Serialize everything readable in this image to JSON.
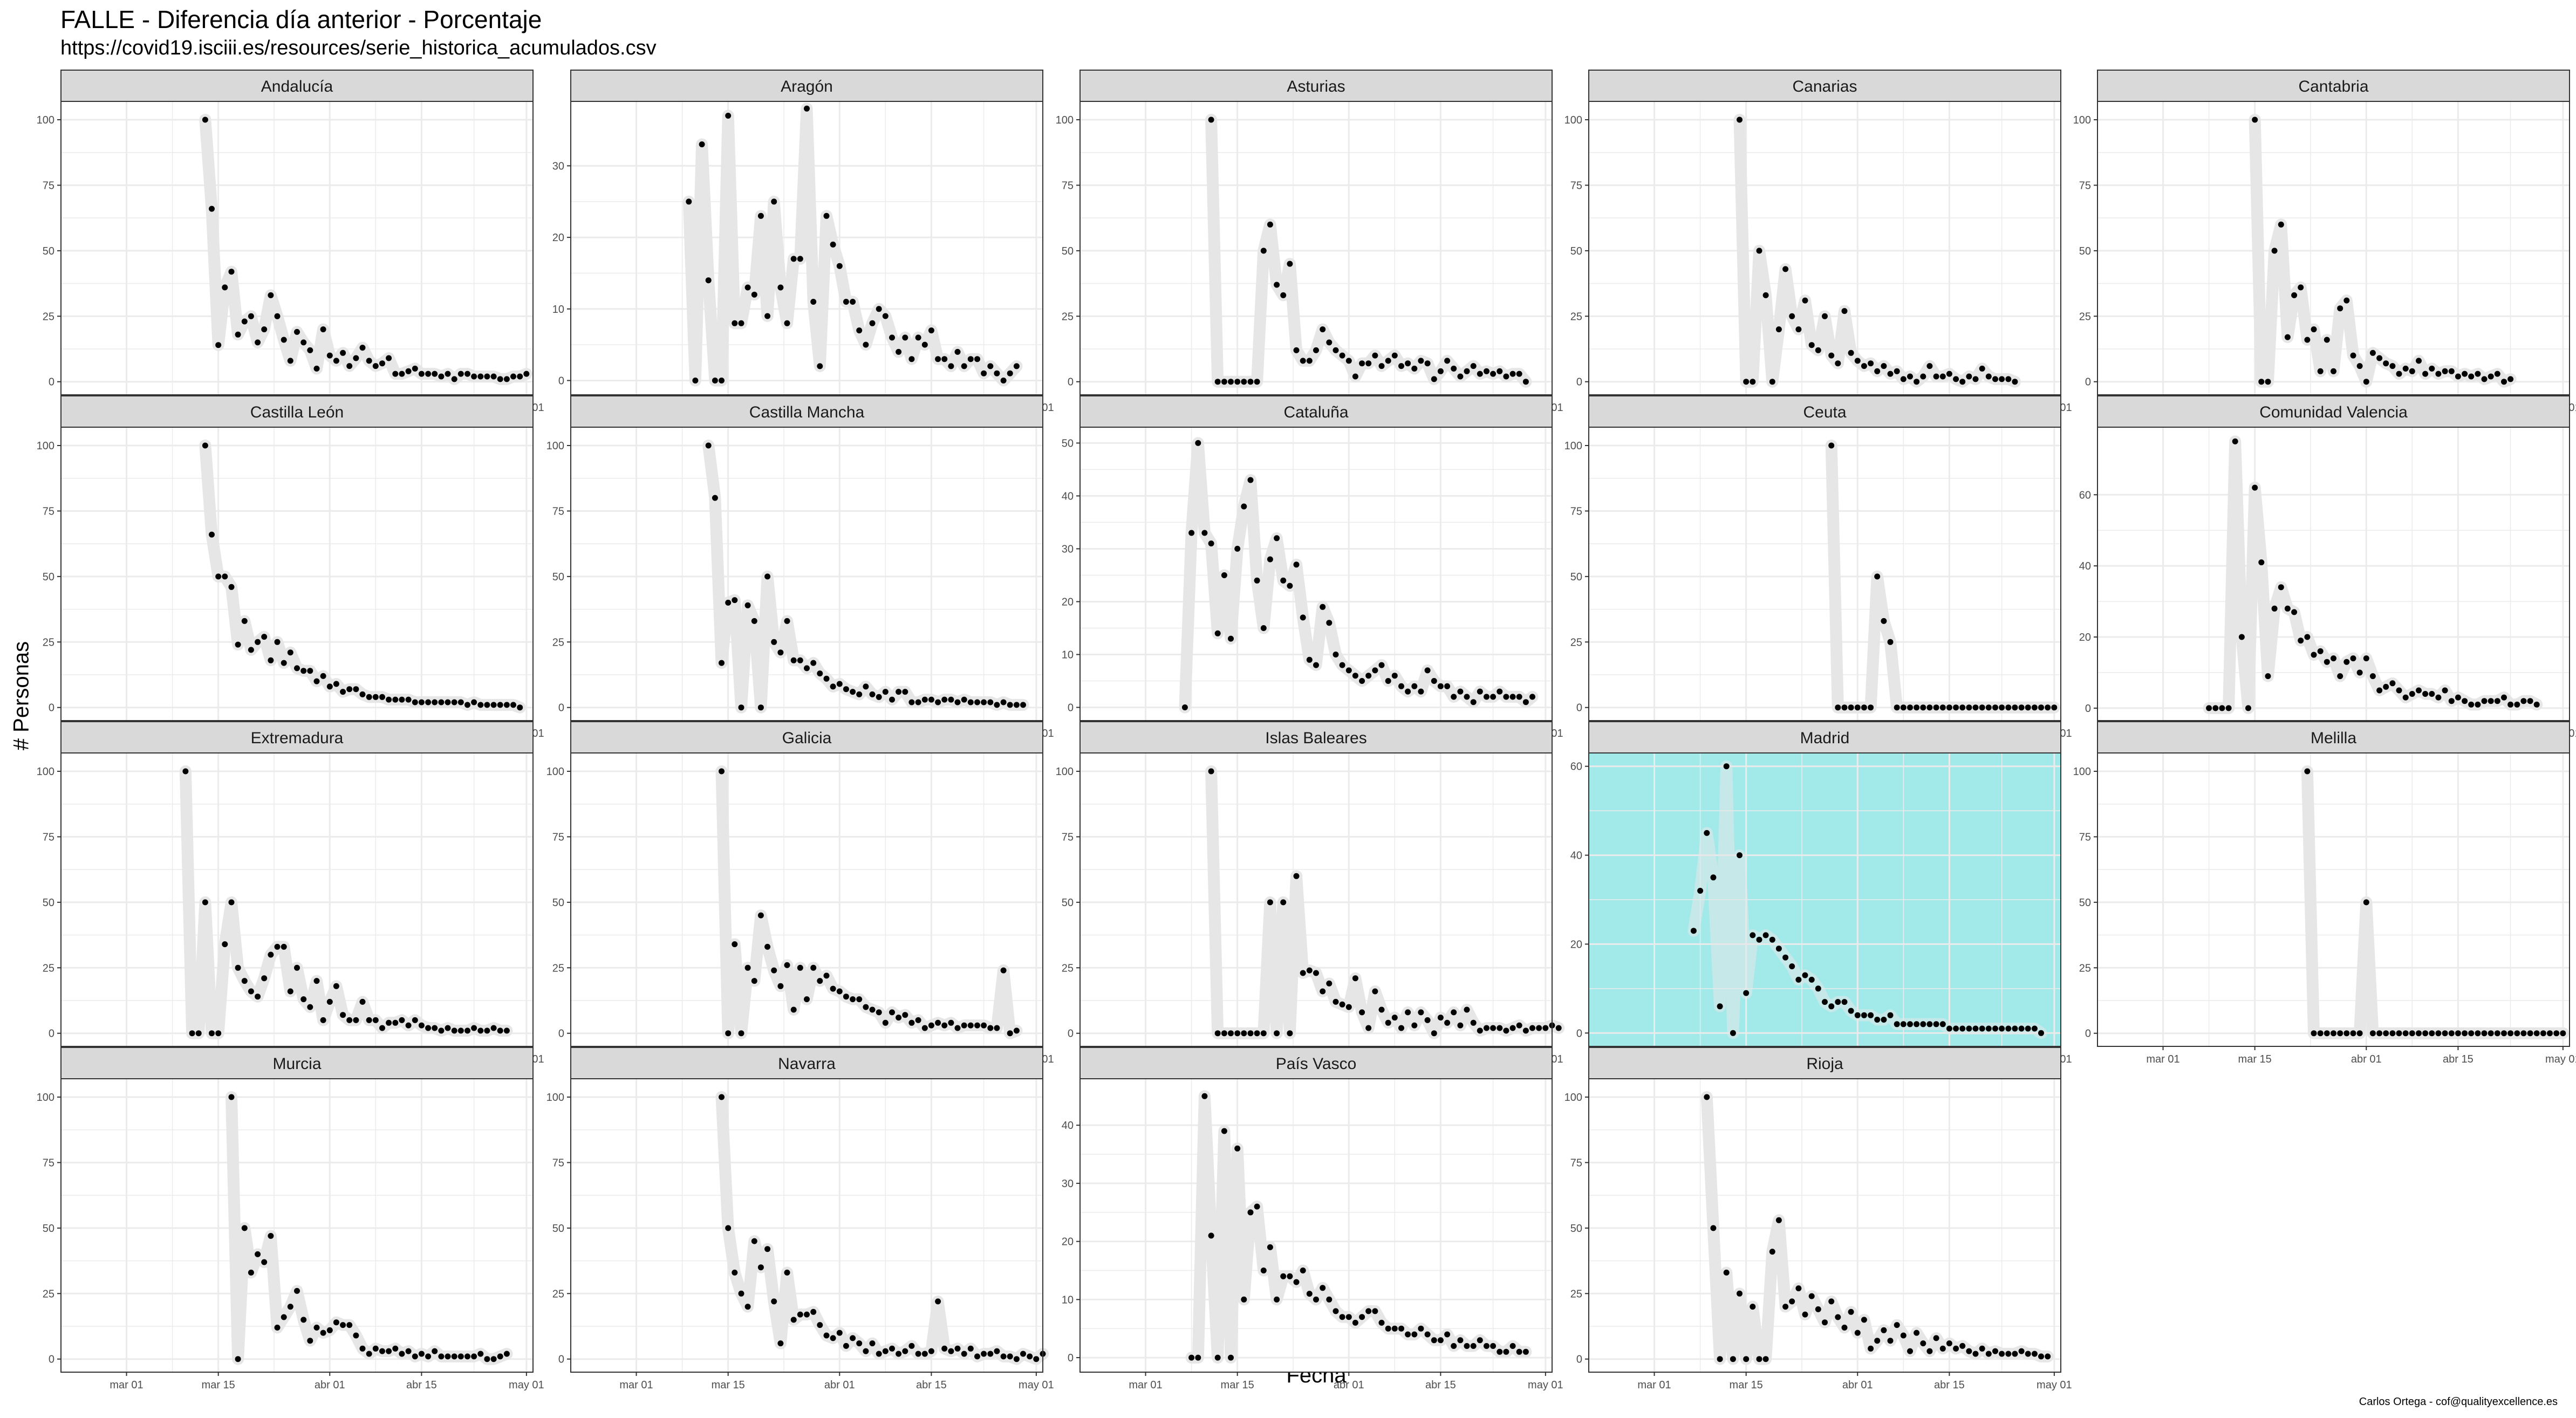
{
  "title": "FALLE - Diferencia día anterior - Porcentaje",
  "subtitle": "https://covid19.isciii.es/resources/serie_historica_acumulados.csv",
  "xlabel": "Fecha",
  "ylabel": "# Personas",
  "caption": "Carlos Ortega - cof@qualityexcellence.es",
  "colors": {
    "highlight_panel": "#a2eaea",
    "strip": "#d9d9d9",
    "line": "#e6e6e6",
    "point": "#000000",
    "grid": "#ebebeb"
  },
  "chart_data": {
    "type": "line",
    "x_ticks": [
      "mar 01",
      "mar 15",
      "abr 01",
      "abr 15",
      "may 01"
    ],
    "xlim": [
      "2020-02-20",
      "2020-05-02"
    ],
    "highlight": "Madrid",
    "panels": [
      {
        "name": "Andalucía",
        "ylim": [
          -5,
          107
        ],
        "y_ticks": [
          0,
          25,
          50,
          75,
          100
        ],
        "start": "2020-03-13",
        "values": [
          100,
          66,
          14,
          36,
          42,
          18,
          23,
          25,
          15,
          20,
          33,
          25,
          16,
          8,
          19,
          15,
          12,
          5,
          20,
          10,
          8,
          11,
          6,
          9,
          13,
          8,
          6,
          7,
          9,
          3,
          3,
          4,
          5,
          3,
          3,
          3,
          2,
          3,
          1,
          3,
          3,
          2,
          2,
          2,
          2,
          1,
          1,
          2,
          2,
          3
        ]
      },
      {
        "name": "Aragón",
        "ylim": [
          -2,
          39
        ],
        "y_ticks": [
          0,
          10,
          20,
          30
        ],
        "start": "2020-03-09",
        "values": [
          25,
          0,
          33,
          14,
          0,
          0,
          37,
          8,
          8,
          13,
          12,
          23,
          9,
          25,
          13,
          8,
          17,
          17,
          38,
          11,
          2,
          23,
          19,
          16,
          11,
          11,
          7,
          5,
          8,
          10,
          9,
          6,
          4,
          6,
          3,
          6,
          5,
          7,
          3,
          3,
          2,
          4,
          2,
          3,
          3,
          1,
          2,
          1,
          0,
          1,
          2
        ]
      },
      {
        "name": "Asturias",
        "ylim": [
          -5,
          107
        ],
        "y_ticks": [
          0,
          25,
          50,
          75,
          100
        ],
        "start": "2020-03-11",
        "values": [
          100,
          0,
          0,
          0,
          0,
          0,
          0,
          0,
          50,
          60,
          37,
          33,
          45,
          12,
          8,
          8,
          12,
          20,
          15,
          12,
          10,
          8,
          2,
          7,
          7,
          10,
          6,
          8,
          10,
          6,
          7,
          5,
          8,
          7,
          1,
          4,
          8,
          5,
          2,
          4,
          6,
          3,
          4,
          3,
          4,
          2,
          3,
          3,
          0
        ]
      },
      {
        "name": "Canarias",
        "ylim": [
          -5,
          107
        ],
        "y_ticks": [
          0,
          25,
          50,
          75,
          100
        ],
        "start": "2020-03-14",
        "values": [
          100,
          0,
          0,
          50,
          33,
          0,
          20,
          43,
          25,
          20,
          31,
          14,
          12,
          25,
          10,
          7,
          27,
          11,
          8,
          6,
          7,
          4,
          6,
          3,
          4,
          1,
          2,
          0,
          2,
          6,
          2,
          2,
          3,
          1,
          0,
          2,
          1,
          5,
          2,
          1,
          1,
          1,
          0
        ]
      },
      {
        "name": "Cantabria",
        "ylim": [
          -5,
          107
        ],
        "y_ticks": [
          0,
          25,
          50,
          75,
          100
        ],
        "start": "2020-03-15",
        "values": [
          100,
          0,
          0,
          50,
          60,
          17,
          33,
          36,
          16,
          20,
          4,
          16,
          4,
          28,
          31,
          10,
          6,
          0,
          11,
          9,
          7,
          6,
          3,
          5,
          4,
          8,
          3,
          5,
          3,
          4,
          4,
          2,
          3,
          2,
          3,
          1,
          2,
          3,
          0,
          1
        ]
      },
      {
        "name": "Castilla León",
        "ylim": [
          -5,
          107
        ],
        "y_ticks": [
          0,
          25,
          50,
          75,
          100
        ],
        "start": "2020-03-13",
        "values": [
          100,
          66,
          50,
          50,
          46,
          24,
          33,
          22,
          25,
          27,
          18,
          25,
          17,
          21,
          15,
          14,
          14,
          10,
          12,
          8,
          9,
          6,
          7,
          7,
          5,
          4,
          4,
          4,
          3,
          3,
          3,
          3,
          2,
          2,
          2,
          2,
          2,
          2,
          2,
          2,
          1,
          2,
          1,
          1,
          1,
          1,
          1,
          1,
          0
        ]
      },
      {
        "name": "Castilla Mancha",
        "ylim": [
          -5,
          107
        ],
        "y_ticks": [
          0,
          25,
          50,
          75,
          100
        ],
        "start": "2020-03-12",
        "values": [
          100,
          80,
          17,
          40,
          41,
          0,
          39,
          33,
          0,
          50,
          25,
          21,
          33,
          18,
          18,
          15,
          17,
          13,
          11,
          8,
          9,
          7,
          6,
          5,
          8,
          5,
          4,
          6,
          3,
          6,
          6,
          2,
          2,
          3,
          3,
          2,
          3,
          3,
          2,
          3,
          2,
          2,
          2,
          2,
          1,
          2,
          1,
          1,
          1
        ]
      },
      {
        "name": "Cataluña",
        "ylim": [
          -2.5,
          53
        ],
        "y_ticks": [
          0,
          10,
          20,
          30,
          40,
          50
        ],
        "start": "2020-03-07",
        "values": [
          0,
          33,
          50,
          33,
          31,
          14,
          25,
          13,
          30,
          38,
          43,
          24,
          15,
          28,
          32,
          24,
          23,
          27,
          17,
          9,
          8,
          19,
          16,
          10,
          8,
          7,
          6,
          5,
          6,
          7,
          8,
          5,
          6,
          4,
          3,
          4,
          3,
          7,
          5,
          4,
          4,
          2,
          3,
          2,
          1,
          3,
          2,
          2,
          3,
          2,
          2,
          2,
          1,
          2
        ]
      },
      {
        "name": "Ceuta",
        "ylim": [
          -5,
          107
        ],
        "y_ticks": [
          0,
          25,
          50,
          75,
          100
        ],
        "start": "2020-03-28",
        "values": [
          100,
          0,
          0,
          0,
          0,
          0,
          0,
          50,
          33,
          25,
          0,
          0,
          0,
          0,
          0,
          0,
          0,
          0,
          0,
          0,
          0,
          0,
          0,
          0,
          0,
          0,
          0,
          0,
          0,
          0,
          0,
          0,
          0,
          0,
          0
        ]
      },
      {
        "name": "Comunidad Valencia",
        "ylim": [
          -3.5,
          79
        ],
        "y_ticks": [
          0,
          20,
          40,
          60
        ],
        "start": "2020-03-08",
        "values": [
          0,
          0,
          0,
          0,
          75,
          20,
          0,
          62,
          41,
          9,
          28,
          34,
          28,
          27,
          19,
          20,
          15,
          16,
          13,
          14,
          9,
          13,
          14,
          10,
          14,
          9,
          5,
          6,
          7,
          5,
          3,
          4,
          5,
          4,
          4,
          3,
          5,
          2,
          3,
          2,
          1,
          1,
          2,
          2,
          2,
          3,
          1,
          1,
          2,
          2,
          1
        ]
      },
      {
        "name": "Extremadura",
        "ylim": [
          -5,
          107
        ],
        "y_ticks": [
          0,
          25,
          50,
          75,
          100
        ],
        "start": "2020-03-10",
        "values": [
          100,
          0,
          0,
          50,
          0,
          0,
          34,
          50,
          25,
          20,
          16,
          14,
          21,
          30,
          33,
          33,
          16,
          25,
          13,
          10,
          20,
          5,
          12,
          18,
          7,
          5,
          5,
          12,
          5,
          5,
          2,
          4,
          4,
          5,
          3,
          5,
          3,
          2,
          2,
          1,
          2,
          1,
          1,
          1,
          2,
          1,
          1,
          2,
          1,
          1
        ]
      },
      {
        "name": "Galicia",
        "ylim": [
          -5,
          107
        ],
        "y_ticks": [
          0,
          25,
          50,
          75,
          100
        ],
        "start": "2020-03-14",
        "values": [
          100,
          0,
          34,
          0,
          25,
          20,
          45,
          33,
          24,
          18,
          26,
          9,
          25,
          13,
          25,
          20,
          22,
          17,
          16,
          14,
          13,
          13,
          10,
          9,
          8,
          4,
          8,
          6,
          7,
          4,
          5,
          2,
          3,
          4,
          3,
          4,
          2,
          3,
          3,
          3,
          3,
          2,
          2,
          24,
          0,
          1
        ]
      },
      {
        "name": "Islas Baleares",
        "ylim": [
          -5,
          107
        ],
        "y_ticks": [
          0,
          25,
          50,
          75,
          100
        ],
        "start": "2020-03-11",
        "values": [
          100,
          0,
          0,
          0,
          0,
          0,
          0,
          0,
          0,
          50,
          0,
          50,
          0,
          60,
          23,
          24,
          23,
          16,
          19,
          12,
          11,
          10,
          21,
          8,
          2,
          16,
          9,
          4,
          6,
          2,
          8,
          3,
          8,
          5,
          0,
          6,
          4,
          8,
          3,
          9,
          4,
          1,
          2,
          2,
          2,
          1,
          2,
          3,
          1,
          2,
          2,
          2,
          3,
          2
        ]
      },
      {
        "name": "Madrid",
        "ylim": [
          -3,
          63
        ],
        "y_ticks": [
          0,
          20,
          40,
          60
        ],
        "start": "2020-03-07",
        "values": [
          23,
          32,
          45,
          35,
          6,
          60,
          0,
          40,
          9,
          22,
          21,
          22,
          21,
          19,
          17,
          15,
          12,
          13,
          12,
          10,
          7,
          6,
          7,
          7,
          5,
          4,
          4,
          4,
          3,
          3,
          4,
          2,
          2,
          2,
          2,
          2,
          2,
          2,
          2,
          1,
          1,
          1,
          1,
          1,
          1,
          1,
          1,
          1,
          1,
          1,
          1,
          1,
          1,
          0
        ]
      },
      {
        "name": "Melilla",
        "ylim": [
          -5,
          107
        ],
        "y_ticks": [
          0,
          25,
          50,
          75,
          100
        ],
        "start": "2020-03-23",
        "values": [
          100,
          0,
          0,
          0,
          0,
          0,
          0,
          0,
          0,
          50,
          0,
          0,
          0,
          0,
          0,
          0,
          0,
          0,
          0,
          0,
          0,
          0,
          0,
          0,
          0,
          0,
          0,
          0,
          0,
          0,
          0,
          0,
          0,
          0,
          0,
          0,
          0,
          0,
          0,
          0
        ]
      },
      {
        "name": "Murcia",
        "ylim": [
          -5,
          107
        ],
        "y_ticks": [
          0,
          25,
          50,
          75,
          100
        ],
        "start": "2020-03-17",
        "values": [
          100,
          0,
          50,
          33,
          40,
          37,
          47,
          12,
          16,
          20,
          26,
          15,
          7,
          12,
          10,
          11,
          14,
          13,
          13,
          9,
          4,
          2,
          4,
          3,
          3,
          4,
          2,
          3,
          1,
          2,
          1,
          3,
          1,
          1,
          1,
          1,
          1,
          1,
          2,
          0,
          0,
          1,
          2
        ]
      },
      {
        "name": "Navarra",
        "ylim": [
          -5,
          107
        ],
        "y_ticks": [
          0,
          25,
          50,
          75,
          100
        ],
        "start": "2020-03-14",
        "values": [
          100,
          50,
          33,
          25,
          20,
          45,
          35,
          42,
          22,
          6,
          33,
          15,
          17,
          17,
          18,
          13,
          9,
          8,
          10,
          5,
          8,
          6,
          3,
          6,
          2,
          3,
          4,
          2,
          3,
          5,
          2,
          2,
          3,
          22,
          4,
          3,
          4,
          2,
          4,
          1,
          2,
          2,
          3,
          1,
          1,
          0,
          2,
          1,
          0,
          2
        ]
      },
      {
        "name": "País Vasco",
        "ylim": [
          -2.5,
          48
        ],
        "y_ticks": [
          0,
          10,
          20,
          30,
          40
        ],
        "start": "2020-03-08",
        "values": [
          0,
          0,
          45,
          21,
          0,
          39,
          0,
          36,
          10,
          25,
          26,
          15,
          19,
          10,
          14,
          14,
          13,
          15,
          11,
          10,
          12,
          10,
          8,
          7,
          7,
          6,
          7,
          8,
          8,
          6,
          5,
          5,
          5,
          4,
          4,
          5,
          4,
          3,
          3,
          4,
          2,
          3,
          2,
          2,
          3,
          2,
          2,
          1,
          1,
          2,
          1,
          1
        ]
      },
      {
        "name": "Rioja",
        "ylim": [
          -5,
          107
        ],
        "y_ticks": [
          0,
          25,
          50,
          75,
          100
        ],
        "start": "2020-03-09",
        "values": [
          100,
          50,
          0,
          33,
          0,
          25,
          0,
          20,
          0,
          0,
          41,
          53,
          20,
          22,
          27,
          17,
          24,
          19,
          14,
          22,
          16,
          12,
          18,
          10,
          15,
          4,
          7,
          11,
          7,
          13,
          9,
          3,
          10,
          6,
          3,
          8,
          4,
          6,
          4,
          5,
          3,
          2,
          4,
          2,
          3,
          2,
          2,
          2,
          3,
          2,
          2,
          1,
          1
        ]
      }
    ]
  }
}
